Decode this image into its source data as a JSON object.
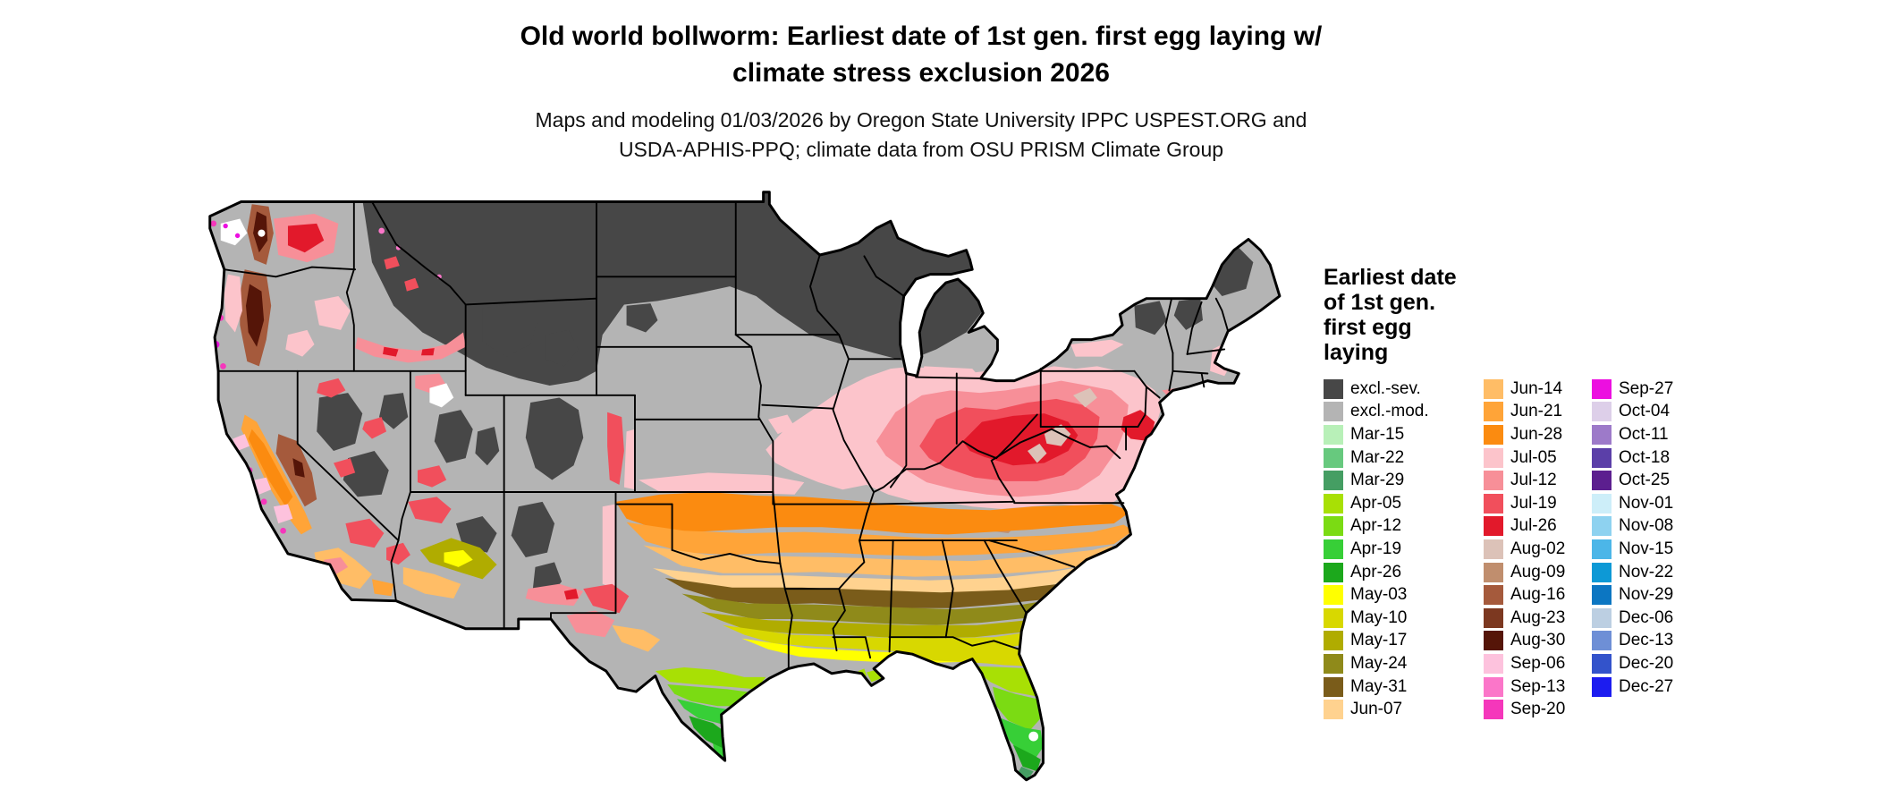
{
  "title": {
    "line1": "Old world bollworm: Earliest date of 1st gen. first egg laying w/",
    "line2": "climate stress exclusion 2026"
  },
  "subtitle": {
    "line1": "Maps and modeling 01/03/2026 by Oregon State University IPPC USPEST.ORG and",
    "line2": "USDA-APHIS-PPQ; climate data from OSU PRISM Climate Group"
  },
  "legend": {
    "title_lines": [
      "Earliest date",
      "of 1st gen.",
      "first egg",
      "laying"
    ],
    "columns": [
      [
        {
          "label": "excl.-sev.",
          "color": "#474747"
        },
        {
          "label": "excl.-mod.",
          "color": "#b4b4b4"
        },
        {
          "label": "Mar-15",
          "color": "#b8f0b8"
        },
        {
          "label": "Mar-22",
          "color": "#67c97e"
        },
        {
          "label": "Mar-29",
          "color": "#459e63"
        },
        {
          "label": "Apr-05",
          "color": "#a8e005"
        },
        {
          "label": "Apr-12",
          "color": "#7bdb13"
        },
        {
          "label": "Apr-19",
          "color": "#37cf37"
        },
        {
          "label": "Apr-26",
          "color": "#1ca81c"
        },
        {
          "label": "May-03",
          "color": "#ffff00"
        },
        {
          "label": "May-10",
          "color": "#d8d800"
        },
        {
          "label": "May-17",
          "color": "#b0ac00"
        },
        {
          "label": "May-24",
          "color": "#8f8a1a"
        },
        {
          "label": "May-31",
          "color": "#7a5c1a"
        },
        {
          "label": "Jun-07",
          "color": "#ffd28f"
        }
      ],
      [
        {
          "label": "Jun-14",
          "color": "#ffbd66"
        },
        {
          "label": "Jun-21",
          "color": "#ffa438"
        },
        {
          "label": "Jun-28",
          "color": "#fb8b10"
        },
        {
          "label": "Jul-05",
          "color": "#fcc4cb"
        },
        {
          "label": "Jul-12",
          "color": "#f78f98"
        },
        {
          "label": "Jul-19",
          "color": "#f14f5c"
        },
        {
          "label": "Jul-26",
          "color": "#e2192b"
        },
        {
          "label": "Aug-02",
          "color": "#dcc2b8"
        },
        {
          "label": "Aug-09",
          "color": "#c08e6e"
        },
        {
          "label": "Aug-16",
          "color": "#a55a3c"
        },
        {
          "label": "Aug-23",
          "color": "#7c3820"
        },
        {
          "label": "Aug-30",
          "color": "#551508"
        },
        {
          "label": "Sep-06",
          "color": "#fdc2dd"
        },
        {
          "label": "Sep-13",
          "color": "#fb76c9"
        },
        {
          "label": "Sep-20",
          "color": "#f537bb"
        }
      ],
      [
        {
          "label": "Sep-27",
          "color": "#ec0fe0"
        },
        {
          "label": "Oct-04",
          "color": "#ddcfe9"
        },
        {
          "label": "Oct-11",
          "color": "#9d7ac9"
        },
        {
          "label": "Oct-18",
          "color": "#5b3fa8"
        },
        {
          "label": "Oct-25",
          "color": "#5c1f8f"
        },
        {
          "label": "Nov-01",
          "color": "#cdeef9"
        },
        {
          "label": "Nov-08",
          "color": "#8ed2f0"
        },
        {
          "label": "Nov-15",
          "color": "#4cb6e8"
        },
        {
          "label": "Nov-22",
          "color": "#0d99d6"
        },
        {
          "label": "Nov-29",
          "color": "#0c76c2"
        },
        {
          "label": "Dec-06",
          "color": "#bccfe2"
        },
        {
          "label": "Dec-13",
          "color": "#6e8fd6"
        },
        {
          "label": "Dec-20",
          "color": "#3353cb"
        },
        {
          "label": "Dec-27",
          "color": "#1c1cf0"
        }
      ]
    ]
  }
}
